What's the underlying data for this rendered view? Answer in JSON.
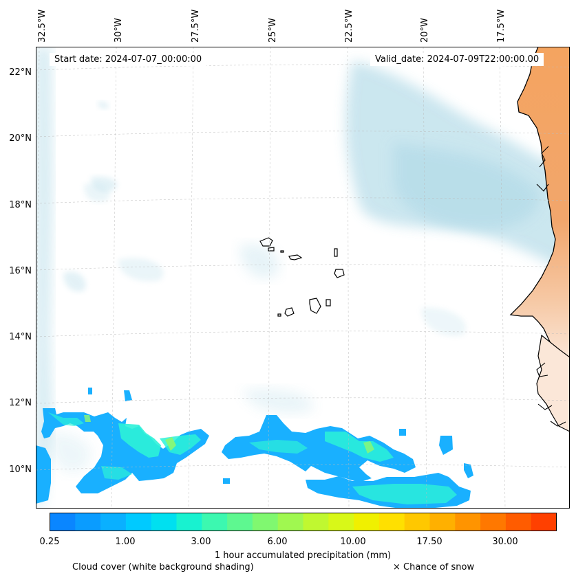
{
  "map": {
    "lon_ticks": [
      "32.5°W",
      "30°W",
      "27.5°W",
      "25°W",
      "22.5°W",
      "20°W",
      "17.5°W"
    ],
    "lat_ticks": [
      "22°N",
      "20°N",
      "18°N",
      "16°N",
      "14°N",
      "12°N",
      "10°N"
    ],
    "start_date": "Start date: 2024-07-07_00:00:00",
    "valid_date": "Valid_date: 2024-07-09T22:00:00.00",
    "colors": {
      "land": "#f4a460",
      "cloud": "#add8e6",
      "precip_low": "#19b0ff",
      "precip_mid": "#2cf2d8",
      "coast": "#000000"
    }
  },
  "colorbar": {
    "tick_labels": [
      "0.25",
      "1.00",
      "3.00",
      "6.00",
      "10.00",
      "17.50",
      "30.00"
    ],
    "label": "1 hour accumulated precipitation (mm)",
    "colors": [
      "#0a86ff",
      "#0a9cff",
      "#0ab0ff",
      "#00caff",
      "#00e0f0",
      "#18f2d0",
      "#3cf8b0",
      "#5ef890",
      "#80f870",
      "#a0f850",
      "#c0f830",
      "#d8f818",
      "#f0f000",
      "#ffe000",
      "#ffc800",
      "#ffb000",
      "#ff9400",
      "#ff7800",
      "#ff5c00",
      "#ff4000"
    ]
  },
  "legend": {
    "cloud_text": "Cloud cover (white background shading)",
    "snow_text": "× Chance of snow"
  }
}
